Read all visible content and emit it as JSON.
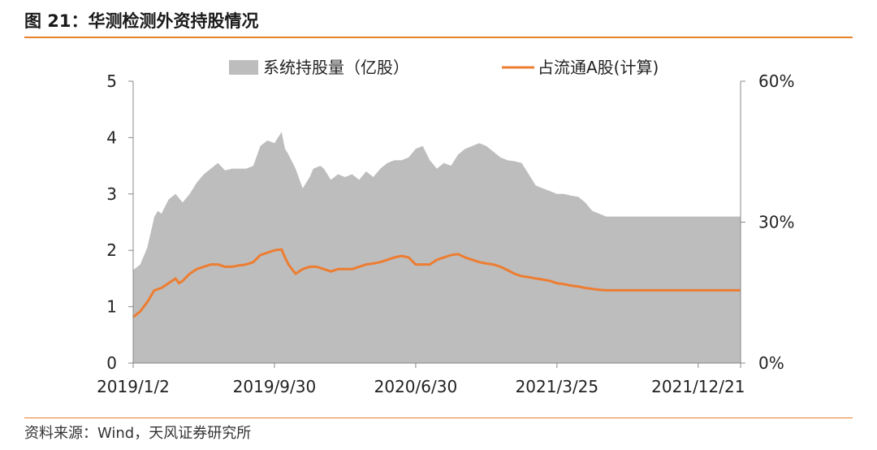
{
  "title": "图 21：华测检测外资持股情况",
  "source": "资料来源：Wind，天风证券研究所",
  "colors": {
    "area": "#bdbdbd",
    "line": "#ed7d31",
    "rule": "#e8822a"
  },
  "chart_data": {
    "type": "area",
    "title": "图 21：华测检测外资持股情况",
    "xlabel": "",
    "ylabel": "",
    "grid": false,
    "legend_position": "top",
    "x_ticks": [
      "2019/1/2",
      "2019/9/30",
      "2020/6/30",
      "2021/3/25",
      "2021/12/21"
    ],
    "x_ticks_numeric": [
      0,
      0.2,
      0.4,
      0.6,
      0.8
    ],
    "x_range": [
      0,
      0.86
    ],
    "y_left": {
      "ticks": [
        "0",
        "1",
        "2",
        "3",
        "4",
        "5"
      ],
      "range": [
        0,
        5
      ]
    },
    "y_right": {
      "ticks": [
        "0%",
        "30%",
        "60%"
      ],
      "range": [
        0,
        0.6
      ]
    },
    "series": [
      {
        "name": "系统持股量（亿股）",
        "type": "area",
        "axis": "left",
        "x": [
          0,
          0.01,
          0.02,
          0.03,
          0.035,
          0.04,
          0.05,
          0.06,
          0.07,
          0.08,
          0.09,
          0.1,
          0.11,
          0.12,
          0.13,
          0.14,
          0.15,
          0.16,
          0.17,
          0.18,
          0.19,
          0.2,
          0.21,
          0.215,
          0.22,
          0.23,
          0.24,
          0.25,
          0.255,
          0.265,
          0.27,
          0.28,
          0.29,
          0.3,
          0.31,
          0.32,
          0.33,
          0.34,
          0.35,
          0.36,
          0.37,
          0.38,
          0.39,
          0.4,
          0.41,
          0.42,
          0.43,
          0.44,
          0.45,
          0.46,
          0.47,
          0.48,
          0.49,
          0.5,
          0.51,
          0.52,
          0.53,
          0.54,
          0.55,
          0.56,
          0.57,
          0.58,
          0.59,
          0.6,
          0.61,
          0.62,
          0.63,
          0.64,
          0.65,
          0.66,
          0.67,
          0.68,
          0.69,
          0.7,
          0.71,
          0.72,
          0.73,
          0.74,
          0.75,
          0.76,
          0.77,
          0.78,
          0.79,
          0.8,
          0.81,
          0.82,
          0.83,
          0.84,
          0.85,
          0.86
        ],
        "values": [
          1.65,
          1.75,
          2.05,
          2.6,
          2.7,
          2.65,
          2.9,
          3.0,
          2.85,
          3.0,
          3.2,
          3.35,
          3.45,
          3.55,
          3.42,
          3.45,
          3.45,
          3.45,
          3.5,
          3.85,
          3.95,
          3.9,
          4.1,
          3.8,
          3.7,
          3.45,
          3.1,
          3.3,
          3.45,
          3.5,
          3.45,
          3.25,
          3.35,
          3.3,
          3.35,
          3.25,
          3.4,
          3.3,
          3.45,
          3.55,
          3.6,
          3.6,
          3.65,
          3.8,
          3.85,
          3.6,
          3.45,
          3.55,
          3.5,
          3.7,
          3.8,
          3.85,
          3.9,
          3.85,
          3.75,
          3.65,
          3.6,
          3.58,
          3.55,
          3.35,
          3.15,
          3.1,
          3.05,
          3.0,
          3.0,
          2.97,
          2.95,
          2.85,
          2.7,
          2.65,
          2.6,
          2.6,
          2.6,
          2.6,
          2.6,
          2.6,
          2.6,
          2.6,
          2.6,
          2.6,
          2.6,
          2.6,
          2.6,
          2.6,
          2.6,
          2.6,
          2.6,
          2.6,
          2.6,
          2.6
        ]
      },
      {
        "name": "占流通A股(计算)",
        "type": "line",
        "axis": "right",
        "x": [
          0,
          0.01,
          0.02,
          0.03,
          0.04,
          0.05,
          0.06,
          0.065,
          0.07,
          0.08,
          0.09,
          0.1,
          0.11,
          0.12,
          0.13,
          0.14,
          0.15,
          0.16,
          0.17,
          0.18,
          0.19,
          0.2,
          0.21,
          0.215,
          0.22,
          0.23,
          0.24,
          0.25,
          0.26,
          0.27,
          0.28,
          0.29,
          0.3,
          0.31,
          0.32,
          0.33,
          0.34,
          0.35,
          0.36,
          0.37,
          0.38,
          0.39,
          0.4,
          0.41,
          0.42,
          0.43,
          0.44,
          0.45,
          0.46,
          0.47,
          0.48,
          0.49,
          0.5,
          0.51,
          0.52,
          0.53,
          0.54,
          0.55,
          0.56,
          0.57,
          0.58,
          0.59,
          0.6,
          0.61,
          0.62,
          0.63,
          0.64,
          0.65,
          0.66,
          0.67,
          0.68,
          0.69,
          0.7,
          0.71,
          0.72,
          0.73,
          0.74,
          0.75,
          0.76,
          0.77,
          0.78,
          0.79,
          0.8,
          0.81,
          0.82,
          0.83,
          0.84,
          0.85,
          0.86
        ],
        "values": [
          0.098,
          0.11,
          0.13,
          0.155,
          0.16,
          0.17,
          0.18,
          0.17,
          0.175,
          0.19,
          0.2,
          0.205,
          0.21,
          0.21,
          0.205,
          0.205,
          0.208,
          0.21,
          0.215,
          0.23,
          0.235,
          0.24,
          0.242,
          0.225,
          0.21,
          0.19,
          0.2,
          0.205,
          0.205,
          0.2,
          0.195,
          0.2,
          0.2,
          0.2,
          0.205,
          0.21,
          0.212,
          0.215,
          0.22,
          0.225,
          0.228,
          0.225,
          0.21,
          0.21,
          0.21,
          0.22,
          0.225,
          0.23,
          0.232,
          0.225,
          0.22,
          0.215,
          0.212,
          0.21,
          0.205,
          0.198,
          0.19,
          0.185,
          0.183,
          0.18,
          0.178,
          0.175,
          0.17,
          0.168,
          0.165,
          0.163,
          0.16,
          0.158,
          0.156,
          0.155,
          0.155,
          0.155,
          0.155,
          0.155,
          0.155,
          0.155,
          0.155,
          0.155,
          0.155,
          0.155,
          0.155,
          0.155,
          0.155,
          0.155,
          0.155,
          0.155,
          0.155,
          0.155,
          0.155
        ]
      }
    ]
  }
}
